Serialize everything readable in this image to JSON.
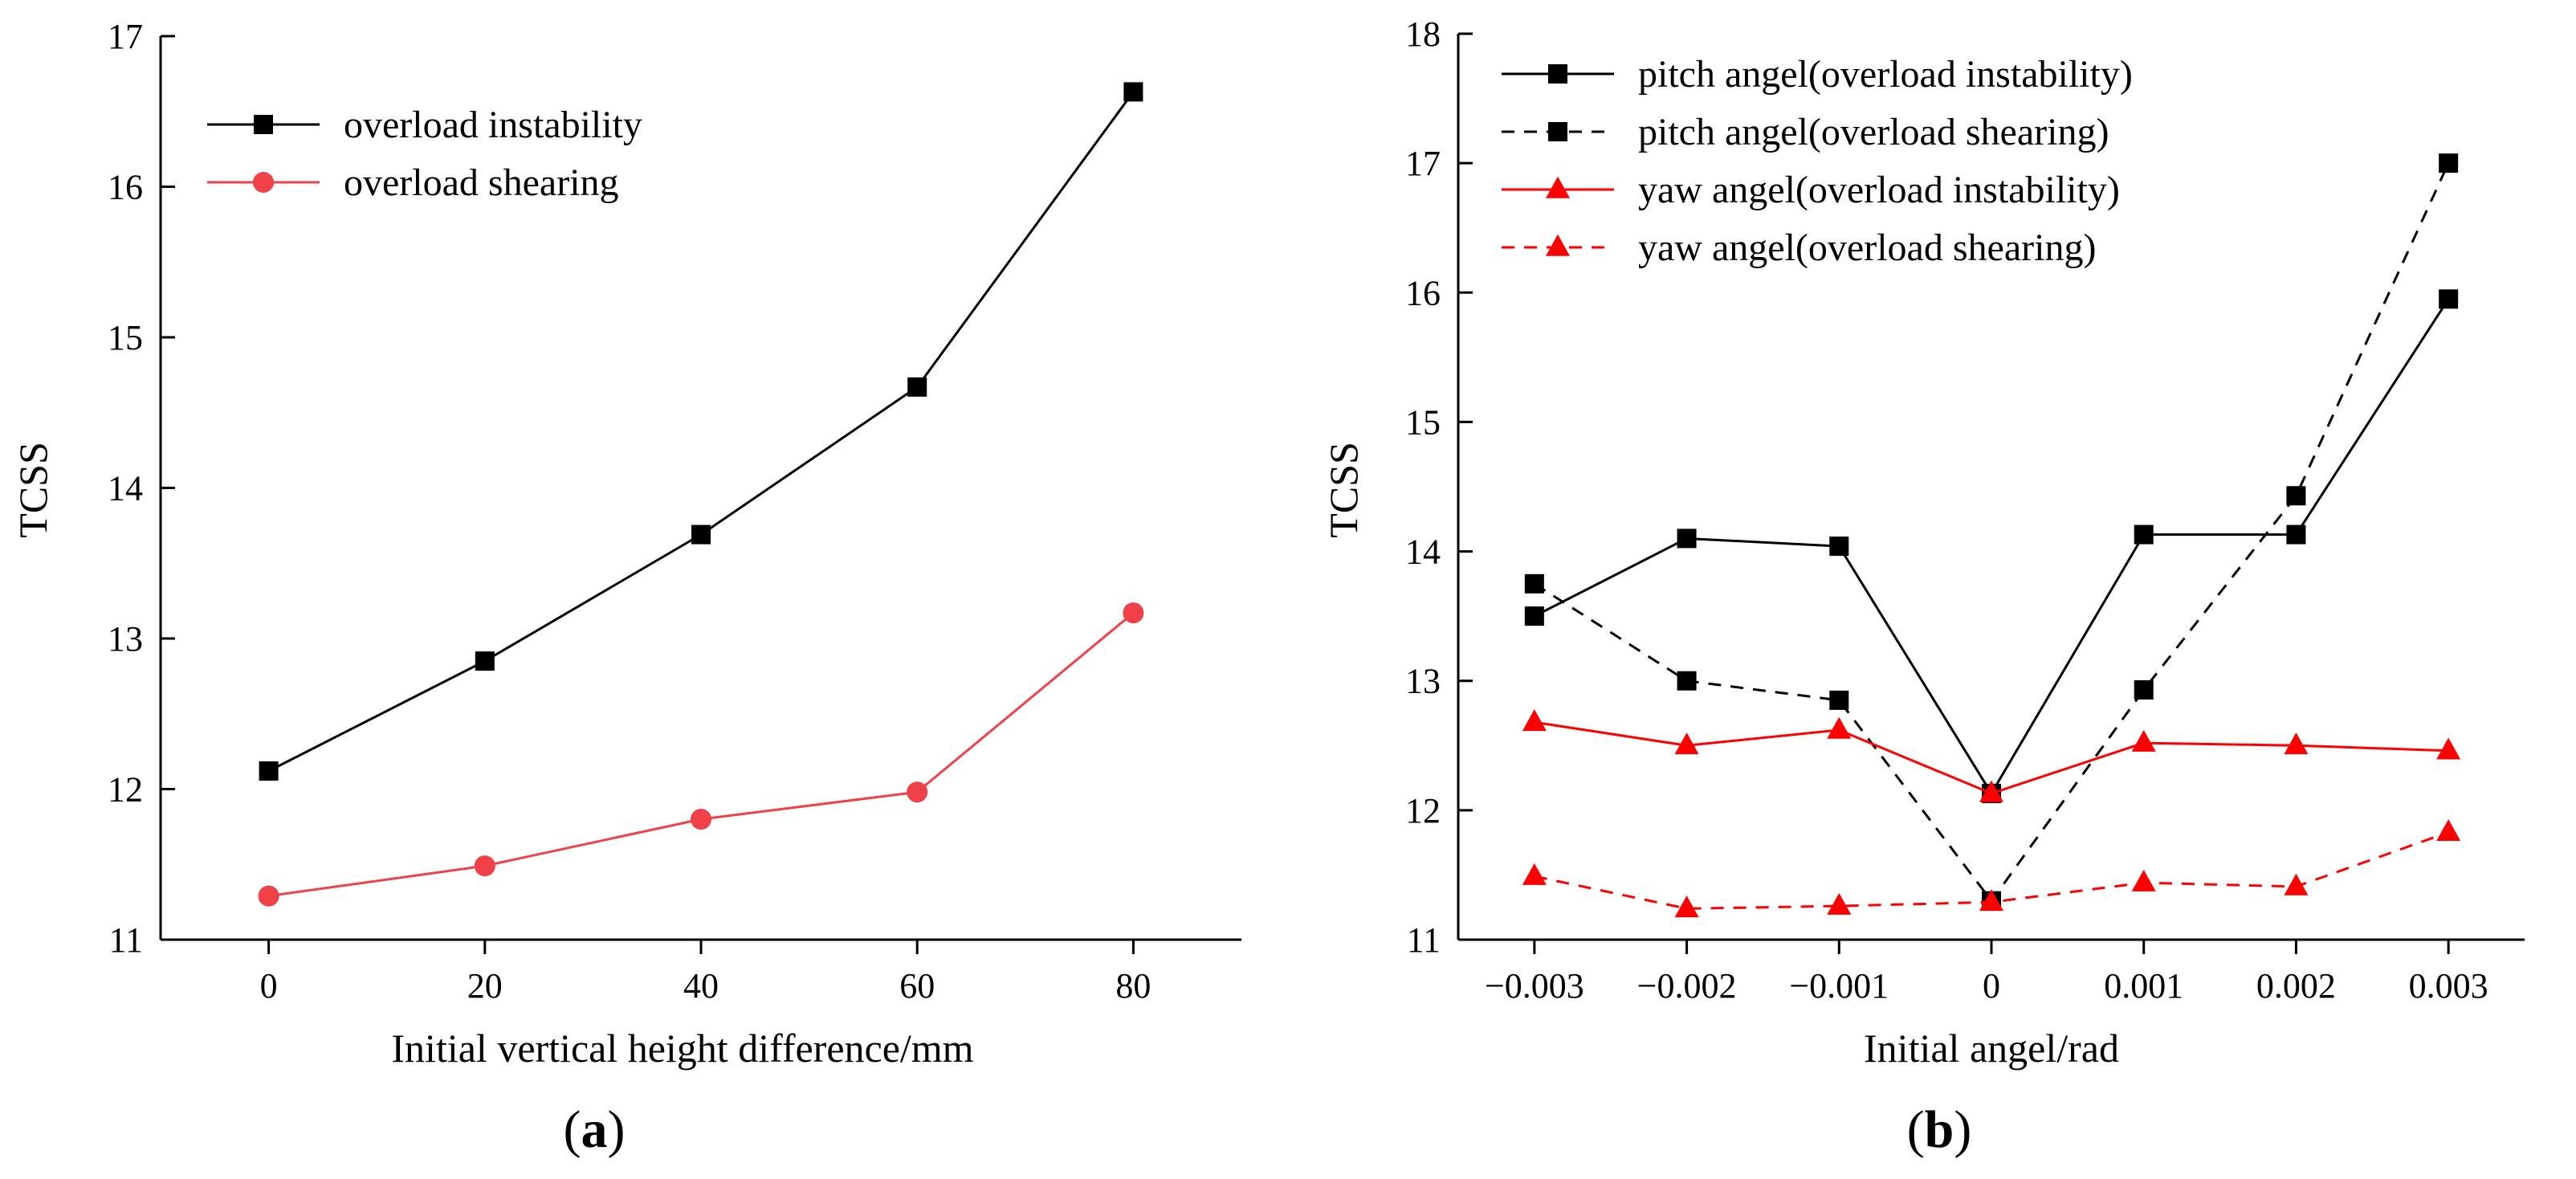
{
  "chart_data": [
    {
      "type": "line",
      "panel_label": "a",
      "xlabel": "Initial vertical height difference/mm",
      "ylabel": "TCSS",
      "xlim": [
        -10,
        90
      ],
      "ylim": [
        11,
        17
      ],
      "xticks": [
        0,
        20,
        40,
        60,
        80
      ],
      "xtick_labels": [
        "0",
        "20",
        "40",
        "60",
        "80"
      ],
      "yticks": [
        11,
        12,
        13,
        14,
        15,
        16,
        17
      ],
      "ytick_labels": [
        "11",
        "12",
        "13",
        "14",
        "15",
        "16",
        "17"
      ],
      "legend_position": "top-left",
      "series": [
        {
          "name": "overload instability",
          "color": "#000000",
          "marker": "square",
          "dash": "solid",
          "x": [
            0,
            20,
            40,
            60,
            80
          ],
          "values": [
            12.12,
            12.85,
            13.69,
            14.67,
            16.63
          ]
        },
        {
          "name": "overload shearing",
          "color": "#ef4147",
          "marker": "circle",
          "dash": "solid",
          "x": [
            0,
            20,
            40,
            60,
            80
          ],
          "values": [
            11.29,
            11.49,
            11.8,
            11.98,
            13.17
          ]
        }
      ]
    },
    {
      "type": "line",
      "panel_label": "b",
      "xlabel": "Initial angel/rad",
      "ylabel": "TCSS",
      "xlim": [
        -0.0035,
        0.0035
      ],
      "ylim": [
        11,
        18
      ],
      "xticks": [
        -0.003,
        -0.002,
        -0.001,
        0,
        0.001,
        0.002,
        0.003
      ],
      "xtick_labels": [
        "−0.003",
        "−0.002",
        "−0.001",
        "0",
        "0.001",
        "0.002",
        "0.003"
      ],
      "yticks": [
        11,
        12,
        13,
        14,
        15,
        16,
        17,
        18
      ],
      "ytick_labels": [
        "11",
        "12",
        "13",
        "14",
        "15",
        "16",
        "17",
        "18"
      ],
      "legend_position": "top-left",
      "series": [
        {
          "name": "pitch angel(overload instability)",
          "color": "#000000",
          "marker": "square",
          "dash": "solid",
          "x": [
            -0.003,
            -0.002,
            -0.001,
            0,
            0.001,
            0.002,
            0.003
          ],
          "values": [
            13.5,
            14.1,
            14.04,
            12.13,
            14.13,
            14.13,
            15.95
          ]
        },
        {
          "name": "pitch angel(overload shearing)",
          "color": "#000000",
          "marker": "square",
          "dash": "dashed",
          "x": [
            -0.003,
            -0.002,
            -0.001,
            0,
            0.001,
            0.002,
            0.003
          ],
          "values": [
            13.75,
            13.0,
            12.85,
            11.3,
            12.93,
            14.43,
            17.0
          ]
        },
        {
          "name": "yaw angel(overload instability)",
          "color": "#ff0000",
          "marker": "triangle",
          "dash": "solid",
          "x": [
            -0.003,
            -0.002,
            -0.001,
            0,
            0.001,
            0.002,
            0.003
          ],
          "values": [
            12.68,
            12.5,
            12.62,
            12.13,
            12.52,
            12.5,
            12.46
          ]
        },
        {
          "name": "yaw angel(overload shearing)",
          "color": "#ff0000",
          "marker": "triangle",
          "dash": "dashed",
          "x": [
            -0.003,
            -0.002,
            -0.001,
            0,
            0.001,
            0.002,
            0.003
          ],
          "values": [
            11.49,
            11.24,
            11.26,
            11.29,
            11.44,
            11.41,
            11.83
          ]
        }
      ]
    }
  ]
}
